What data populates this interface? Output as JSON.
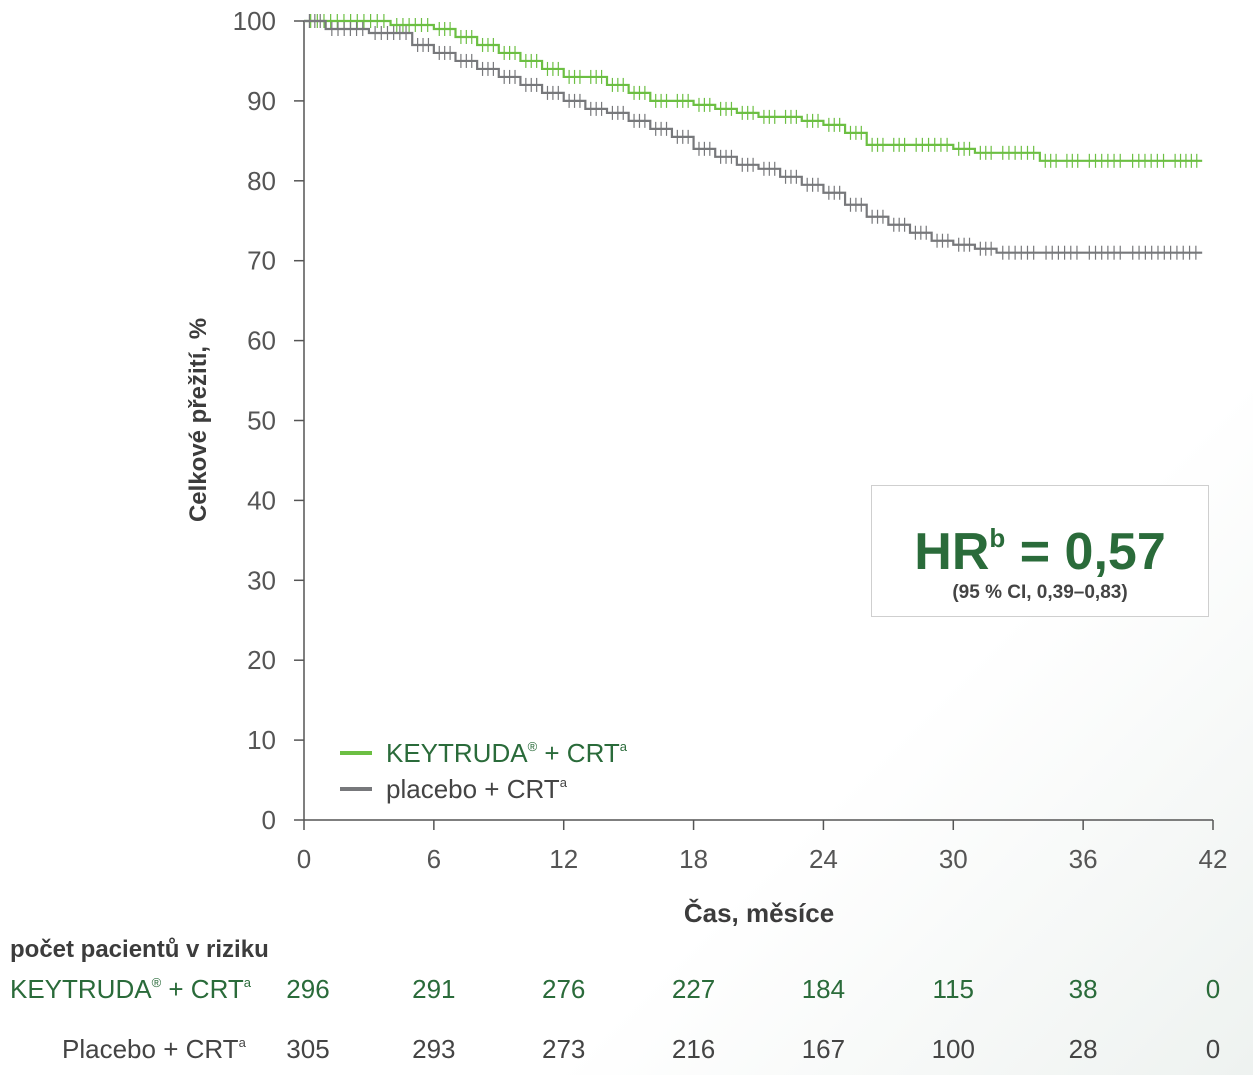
{
  "chart_data": {
    "type": "line",
    "title": "",
    "xlabel": "Čas, měsíce",
    "ylabel": "Celkové přežití, %",
    "xlim": [
      0,
      42
    ],
    "ylim": [
      0,
      100
    ],
    "xticks": [
      0,
      6,
      12,
      18,
      24,
      30,
      36,
      42
    ],
    "yticks": [
      0,
      10,
      20,
      30,
      40,
      50,
      60,
      70,
      80,
      90,
      100
    ],
    "grid": false,
    "legend_position": "bottom-left",
    "series": [
      {
        "name": "KEYTRUDA® + CRT",
        "name_main": "KEYTRUDA",
        "name_reg": "®",
        "name_tail": " + CRT",
        "name_sup": "a",
        "color": "#6cbf43",
        "step": true,
        "x": [
          0,
          4,
          6,
          7,
          8,
          9,
          10,
          11,
          12,
          13,
          14,
          15,
          16,
          17,
          18,
          19,
          20,
          21,
          22,
          23,
          24,
          25,
          26,
          27,
          28,
          30,
          31,
          32,
          34,
          35,
          36,
          38,
          40,
          41.5
        ],
        "y": [
          100,
          99.5,
          99,
          98,
          97,
          96,
          95,
          94,
          93,
          93,
          92,
          91,
          90,
          90,
          89.5,
          89,
          88.5,
          88,
          88,
          87.5,
          87,
          86,
          84.5,
          84.5,
          84.5,
          84,
          83.5,
          83.5,
          82.5,
          82.5,
          82.5,
          82.5,
          82.5,
          82.5
        ]
      },
      {
        "name": "placebo + CRT",
        "name_main": "placebo",
        "name_reg": "",
        "name_tail": " + CRT",
        "name_sup": "a",
        "color": "#77787b",
        "step": true,
        "x": [
          0,
          1,
          3,
          5,
          6,
          7,
          8,
          9,
          10,
          11,
          12,
          13,
          14,
          15,
          16,
          17,
          18,
          19,
          20,
          21,
          22,
          23,
          24,
          25,
          26,
          27,
          28,
          29,
          30,
          31,
          32,
          34,
          36,
          38,
          41.5
        ],
        "y": [
          100,
          99,
          98.5,
          97,
          96,
          95,
          94,
          93,
          92,
          91,
          90,
          89,
          88.5,
          87.5,
          86.5,
          85.5,
          84,
          83,
          82,
          81.5,
          80.5,
          79.5,
          78.5,
          77,
          75.5,
          74.5,
          73.5,
          72.5,
          72,
          71.5,
          71,
          71,
          71,
          71,
          71
        ]
      }
    ],
    "annotation": {
      "hr_label": "HR",
      "hr_sup": "b",
      "hr_value": " = 0,57",
      "ci": "(95 % CI, 0,39–0,83)"
    },
    "risk_table": {
      "title": "počet pacientů v riziku",
      "rows": [
        {
          "label_main": "KEYTRUDA",
          "label_reg": "®",
          "label_tail": " + CRT",
          "label_sup": "a",
          "color": "#2a6b3a",
          "values": [
            "296",
            "291",
            "276",
            "227",
            "184",
            "115",
            "38",
            "0"
          ]
        },
        {
          "label_main": "Placebo",
          "label_reg": "",
          "label_tail": " + CRT",
          "label_sup": "a",
          "color": "#444444",
          "values": [
            "305",
            "293",
            "273",
            "216",
            "167",
            "100",
            "28",
            "0"
          ]
        }
      ]
    }
  }
}
